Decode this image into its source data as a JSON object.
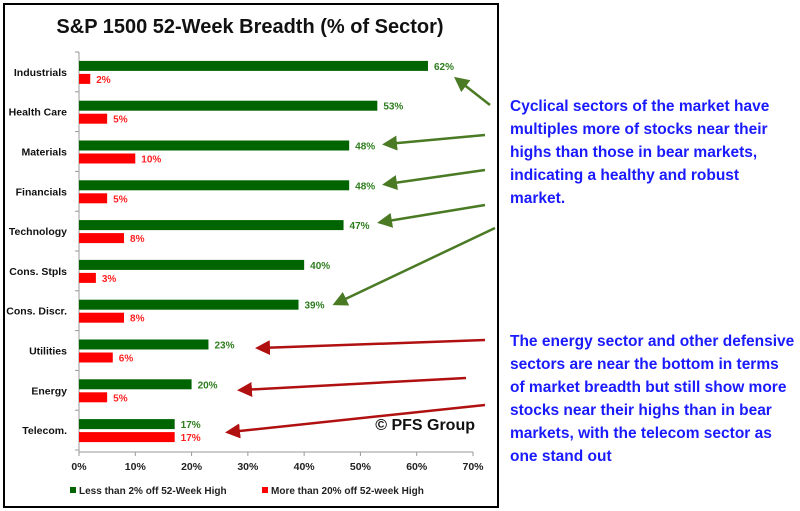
{
  "chart_data": {
    "type": "bar",
    "orientation": "horizontal",
    "title": "S&P 1500 52-Week Breadth (% of Sector)",
    "categories": [
      "Industrials",
      "Health Care",
      "Materials",
      "Financials",
      "Technology",
      "Cons. Stpls",
      "Cons. Discr.",
      "Utilities",
      "Energy",
      "Telecom."
    ],
    "series": [
      {
        "name": "Less than 2% off 52-Week High",
        "color": "#006400",
        "label_color": "#2e7d1e",
        "values": [
          62,
          53,
          48,
          48,
          47,
          40,
          39,
          23,
          20,
          17
        ]
      },
      {
        "name": "More than 20% off 52-week High",
        "color": "#ff0000",
        "label_color": "#ff2020",
        "values": [
          2,
          5,
          10,
          5,
          8,
          3,
          8,
          6,
          5,
          17
        ]
      }
    ],
    "xlim": [
      0,
      70
    ],
    "xticks": [
      "0%",
      "10%",
      "20%",
      "30%",
      "40%",
      "50%",
      "60%",
      "70%"
    ],
    "legend": "bottom",
    "watermark": "© PFS Group"
  },
  "annotations": {
    "cyclical_note": "Cyclical sectors of the market have multiples more of stocks near their highs than those in bear markets, indicating a healthy and robust market.",
    "energy_note": "The energy sector and other defensive sectors are near the bottom in terms of market breadth but still show more stocks near their highs than in bear markets, with the telecom sector as one stand out"
  }
}
